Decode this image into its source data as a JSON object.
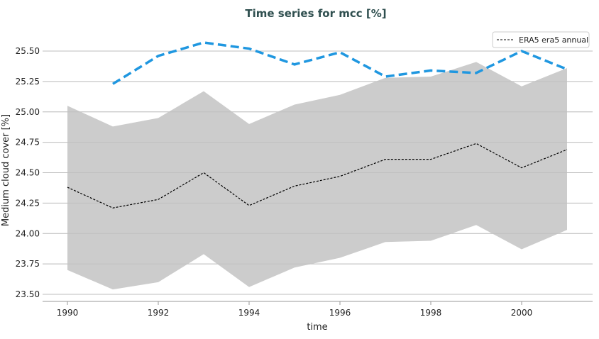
{
  "chart_data": {
    "type": "line",
    "title": "Time series for mcc [%]",
    "xlabel": "time",
    "ylabel": "Medium cloud cover [%]",
    "xlim": [
      1989.4,
      2001.55
    ],
    "ylim": [
      23.47,
      25.67
    ],
    "x_ticks": [
      1990,
      1992,
      1994,
      1996,
      1998,
      2000
    ],
    "y_ticks": [
      23.5,
      23.75,
      24.0,
      24.25,
      24.5,
      24.75,
      25.0,
      25.25,
      25.5
    ],
    "grid": "horizontal",
    "legend": {
      "position": "top-right",
      "entries": [
        "ERA5 era5 annual"
      ]
    },
    "x": [
      1990,
      1991,
      1992,
      1993,
      1994,
      1995,
      1996,
      1997,
      1998,
      1999,
      2000,
      2001
    ],
    "series": [
      {
        "name": "ERA5 era5 annual",
        "style": "dashed",
        "color": "#000000",
        "values": [
          24.38,
          24.21,
          24.28,
          24.5,
          24.23,
          24.39,
          24.47,
          24.61,
          24.61,
          24.74,
          24.54,
          24.69
        ]
      },
      {
        "name": "band upper",
        "color": "#cccccc",
        "values": [
          25.05,
          24.88,
          24.95,
          25.17,
          24.9,
          25.06,
          25.14,
          25.28,
          25.29,
          25.41,
          25.21,
          25.36
        ]
      },
      {
        "name": "band lower",
        "color": "#cccccc",
        "values": [
          23.7,
          23.54,
          23.6,
          23.83,
          23.56,
          23.72,
          23.8,
          23.93,
          23.94,
          24.07,
          23.87,
          24.03
        ]
      },
      {
        "name": "blue dashed",
        "style": "dashed",
        "color": "#1f97e0",
        "x": [
          1991,
          1992,
          1993,
          1994,
          1995,
          1996,
          1997,
          1998,
          1999,
          2000,
          2001
        ],
        "values": [
          25.23,
          25.46,
          25.57,
          25.52,
          25.39,
          25.49,
          25.29,
          25.34,
          25.32,
          25.5,
          25.35
        ]
      }
    ]
  }
}
